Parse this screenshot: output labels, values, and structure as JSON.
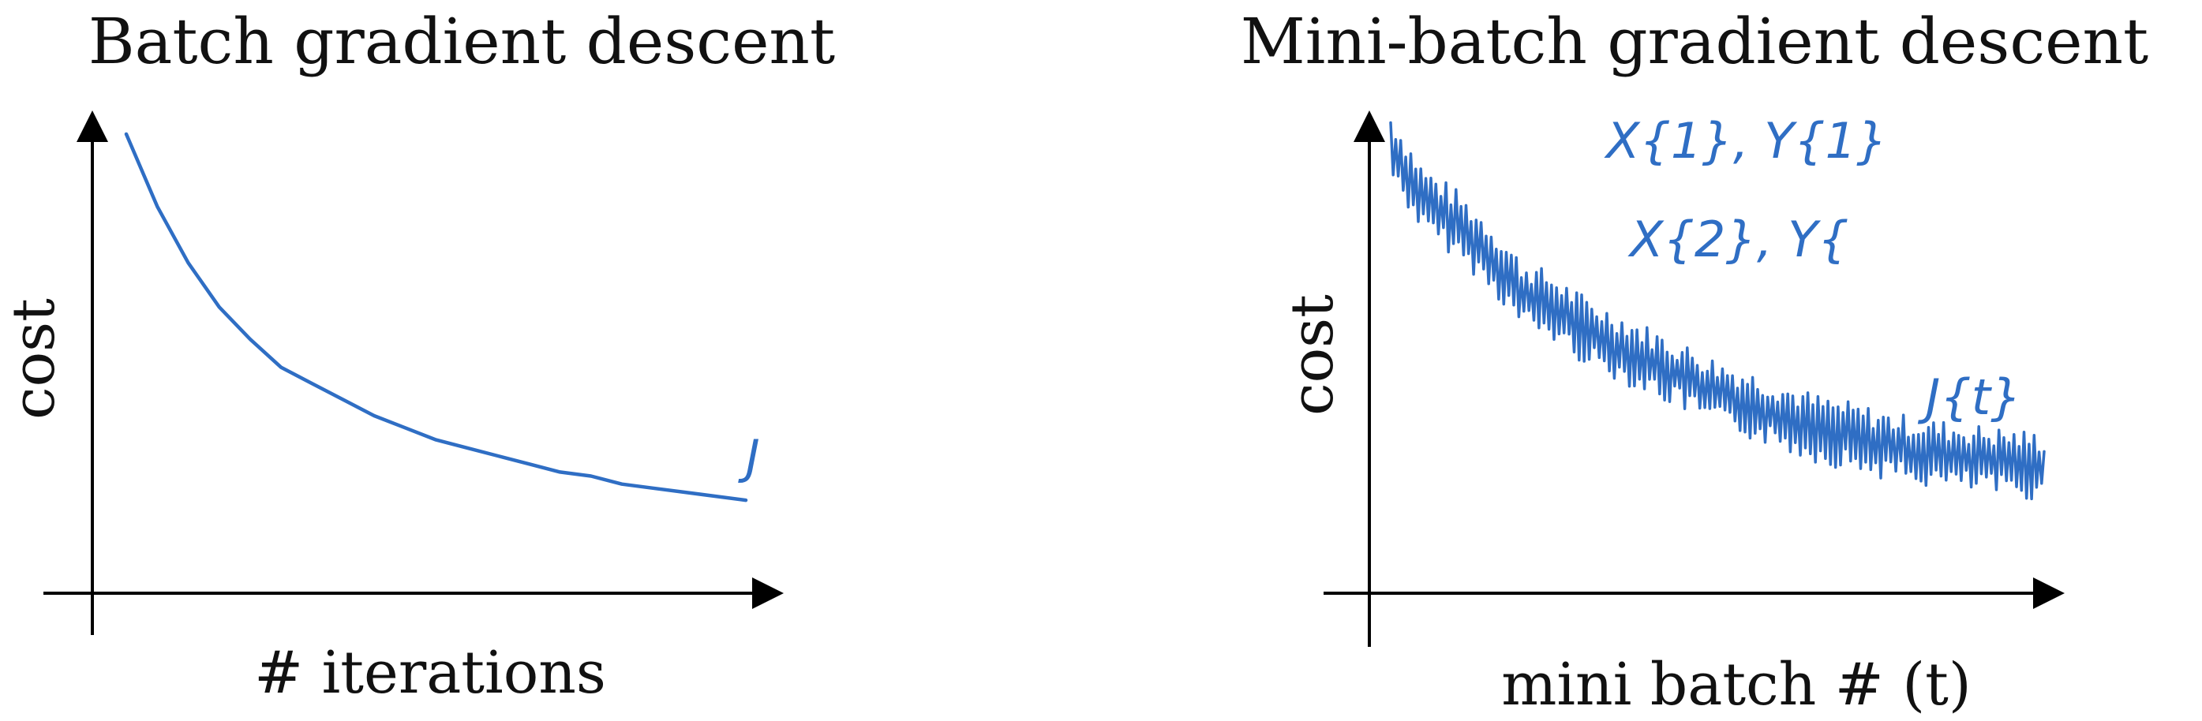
{
  "chart_data": [
    {
      "type": "line",
      "title": "Batch gradient descent",
      "xlabel": "# iterations",
      "ylabel": "cost",
      "grid": false,
      "annotations": [
        {
          "text": "J"
        }
      ],
      "x": [
        0,
        5,
        10,
        15,
        20,
        25,
        30,
        35,
        40,
        45,
        50,
        55,
        60,
        65,
        70,
        75,
        80,
        85,
        90,
        95,
        100
      ],
      "series": [
        {
          "values": [
            1.0,
            0.82,
            0.68,
            0.57,
            0.49,
            0.42,
            0.38,
            0.34,
            0.3,
            0.27,
            0.24,
            0.22,
            0.2,
            0.18,
            0.16,
            0.15,
            0.13,
            0.12,
            0.11,
            0.1,
            0.09
          ]
        }
      ]
    },
    {
      "type": "line",
      "title": "Mini-batch gradient descent",
      "xlabel": "mini batch # (t)",
      "ylabel": "cost",
      "grid": false,
      "annotations": [
        {
          "text": "X{1}, Y{1}"
        },
        {
          "text": "X{2}, Y{"
        },
        {
          "text": "J{t}"
        }
      ],
      "x": [
        0,
        5,
        10,
        15,
        20,
        25,
        30,
        35,
        40,
        45,
        50,
        55,
        60,
        65,
        70,
        75,
        80,
        85,
        90,
        95,
        100
      ],
      "series": [
        {
          "values": [
            1.0,
            0.86,
            0.8,
            0.72,
            0.62,
            0.58,
            0.52,
            0.48,
            0.44,
            0.4,
            0.36,
            0.33,
            0.3,
            0.27,
            0.25,
            0.23,
            0.21,
            0.2,
            0.19,
            0.18,
            0.17
          ],
          "noise_amplitude": 0.09
        }
      ]
    }
  ]
}
